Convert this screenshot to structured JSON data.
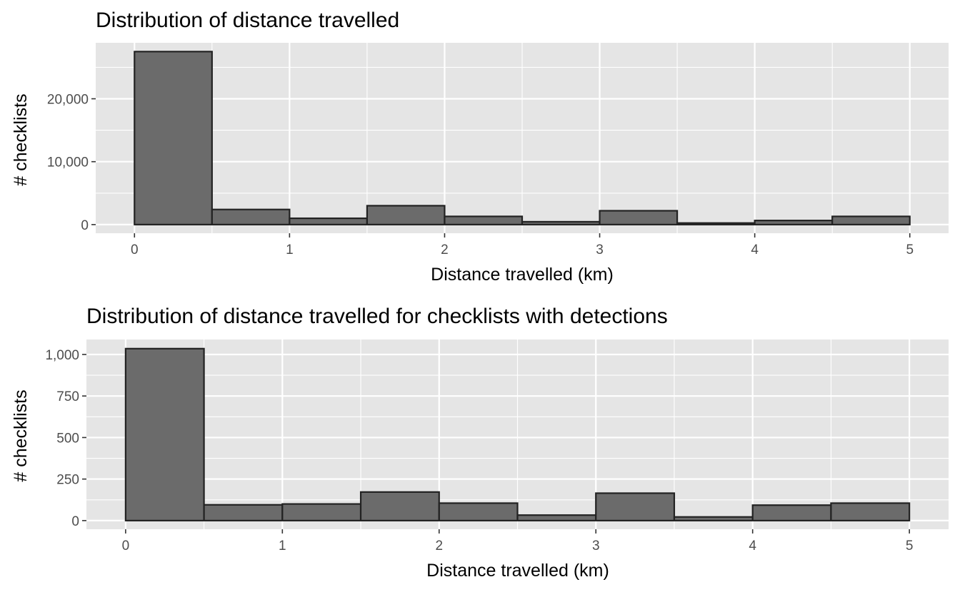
{
  "colors": {
    "panel": "#e5e5e5",
    "bar_fill": "#6b6b6b",
    "bar_stroke": "#222222",
    "grid": "#ffffff",
    "tick_text": "#4d4d4d"
  },
  "chart_data": [
    {
      "type": "bar",
      "title": "Distribution of distance travelled",
      "xlabel": "Distance travelled (km)",
      "ylabel": "# checklists",
      "bin_width": 0.5,
      "bin_starts": [
        0,
        0.5,
        1,
        1.5,
        2,
        2.5,
        3,
        3.5,
        4,
        4.5
      ],
      "values": [
        27500,
        2400,
        1000,
        3000,
        1300,
        450,
        2200,
        250,
        650,
        1300
      ],
      "xlim": [
        -0.25,
        5.25
      ],
      "ylim": [
        -1375,
        28900
      ],
      "x_ticks": [
        0,
        1,
        2,
        3,
        4,
        5
      ],
      "x_tick_labels": [
        "0",
        "1",
        "2",
        "3",
        "4",
        "5"
      ],
      "y_ticks": [
        0,
        10000,
        20000
      ],
      "y_tick_labels": [
        "0",
        "10,000",
        "20,000"
      ],
      "y_minor_ticks": [
        5000,
        15000,
        25000
      ],
      "grid": true,
      "legend": "none"
    },
    {
      "type": "bar",
      "title": "Distribution of distance travelled for checklists with detections",
      "xlabel": "Distance travelled (km)",
      "ylabel": "# checklists",
      "bin_width": 0.5,
      "bin_starts": [
        0,
        0.5,
        1,
        1.5,
        2,
        2.5,
        3,
        3.5,
        4,
        4.5
      ],
      "values": [
        1035,
        95,
        100,
        172,
        105,
        33,
        165,
        22,
        93,
        105
      ],
      "xlim": [
        -0.25,
        5.25
      ],
      "ylim": [
        -52,
        1090
      ],
      "x_ticks": [
        0,
        1,
        2,
        3,
        4,
        5
      ],
      "x_tick_labels": [
        "0",
        "1",
        "2",
        "3",
        "4",
        "5"
      ],
      "y_ticks": [
        0,
        250,
        500,
        750,
        1000
      ],
      "y_tick_labels": [
        "0",
        "250",
        "500",
        "750",
        "1,000"
      ],
      "y_minor_ticks": [
        125,
        375,
        625,
        875
      ],
      "grid": true,
      "legend": "none"
    }
  ]
}
